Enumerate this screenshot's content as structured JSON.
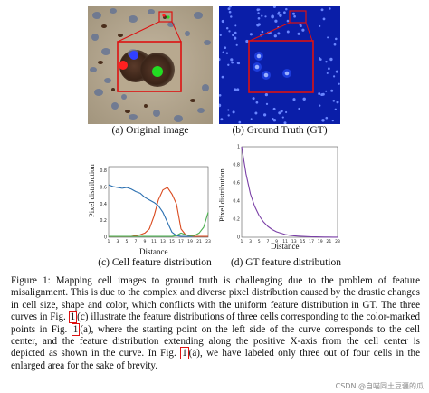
{
  "panels": {
    "a": {
      "label": "(a) Original image"
    },
    "b": {
      "label": "(b) Ground Truth (GT)"
    },
    "c": {
      "label": "(c) Cell feature distribution"
    },
    "d": {
      "label": "(d) GT feature distribution"
    }
  },
  "chart_data": [
    {
      "type": "line",
      "panel": "c",
      "xlabel": "Distance",
      "ylabel": "Pixel distribution",
      "x_ticks": [
        "1",
        "3",
        "5",
        "7",
        "9",
        "11",
        "13",
        "15",
        "17",
        "19",
        "21",
        "23"
      ],
      "y_ticks": [
        "0",
        "0.2",
        "0.4",
        "0.6",
        "0.8"
      ],
      "ylim": [
        0,
        0.85
      ],
      "xlim": [
        1,
        23
      ],
      "series": [
        {
          "color": "#2a6fb0",
          "x": [
            1,
            2,
            3,
            4,
            5,
            6,
            7,
            8,
            9,
            10,
            11,
            12,
            13,
            14,
            15,
            16,
            17,
            18,
            19,
            20,
            21,
            22,
            23
          ],
          "y": [
            0.63,
            0.61,
            0.6,
            0.59,
            0.6,
            0.58,
            0.55,
            0.53,
            0.48,
            0.45,
            0.42,
            0.38,
            0.3,
            0.18,
            0.06,
            0.02,
            0.01,
            0.01,
            0.01,
            0.01,
            0.01,
            0.01,
            0.01
          ]
        },
        {
          "color": "#d9481c",
          "x": [
            1,
            2,
            3,
            4,
            5,
            6,
            7,
            8,
            9,
            10,
            11,
            12,
            13,
            14,
            15,
            16,
            17,
            18,
            19,
            20,
            21,
            22,
            23
          ],
          "y": [
            0.01,
            0.01,
            0.01,
            0.01,
            0.01,
            0.01,
            0.02,
            0.03,
            0.05,
            0.1,
            0.25,
            0.45,
            0.57,
            0.6,
            0.52,
            0.4,
            0.1,
            0.03,
            0.02,
            0.01,
            0.01,
            0.01,
            0.01
          ]
        },
        {
          "color": "#4caf50",
          "x": [
            1,
            2,
            3,
            4,
            5,
            6,
            7,
            8,
            9,
            10,
            11,
            12,
            13,
            14,
            15,
            16,
            17,
            18,
            19,
            20,
            21,
            22,
            23
          ],
          "y": [
            0.01,
            0.01,
            0.01,
            0.01,
            0.01,
            0.01,
            0.01,
            0.01,
            0.01,
            0.01,
            0.01,
            0.01,
            0.01,
            0.01,
            0.01,
            0.02,
            0.05,
            0.03,
            0.02,
            0.02,
            0.05,
            0.12,
            0.3
          ]
        }
      ]
    },
    {
      "type": "line",
      "panel": "d",
      "xlabel": "Distance",
      "ylabel": "Pixel distribution",
      "x_ticks": [
        "1",
        "3",
        "5",
        "7",
        "9",
        "11",
        "13",
        "15",
        "17",
        "19",
        "21",
        "23"
      ],
      "y_ticks": [
        "0",
        "0.2",
        "0.4",
        "0.6",
        "0.8",
        "1"
      ],
      "ylim": [
        0,
        1
      ],
      "xlim": [
        1,
        23
      ],
      "series": [
        {
          "color": "#7a3fa6",
          "x": [
            1,
            2,
            3,
            4,
            5,
            6,
            7,
            8,
            9,
            10,
            11,
            12,
            13,
            14,
            15,
            16,
            17,
            18,
            19,
            20,
            21,
            22,
            23
          ],
          "y": [
            1.0,
            0.7,
            0.48,
            0.34,
            0.24,
            0.17,
            0.12,
            0.085,
            0.06,
            0.045,
            0.03,
            0.022,
            0.016,
            0.012,
            0.009,
            0.007,
            0.005,
            0.004,
            0.003,
            0.002,
            0.002,
            0.001,
            0.001
          ]
        }
      ]
    }
  ],
  "caption": {
    "p1": "Figure 1:  Mapping cell images to ground truth is challenging due to the problem of feature misalignment. This is due to the complex and diverse pixel distribution caused by the drastic changes in cell size, shape and color, which conflicts with the uniform feature distribution in GT. The three curves in Fig. ",
    "ref1": "1",
    "p2": "(c) illustrate the feature distributions of three cells corresponding to the color-marked points in Fig. ",
    "ref2": "1",
    "p3": "(a), where the starting point on the left side of the curve corresponds to the cell center, and the feature distribution extending along the positive X-axis from the cell center is depicted as shown in the curve. In Fig. ",
    "ref3": "1",
    "p4": "(a), we have labeled only three out of four cells in the enlarged area for the sake of brevity."
  },
  "watermark": "CSDN @自喵同土豆疆的瓜"
}
